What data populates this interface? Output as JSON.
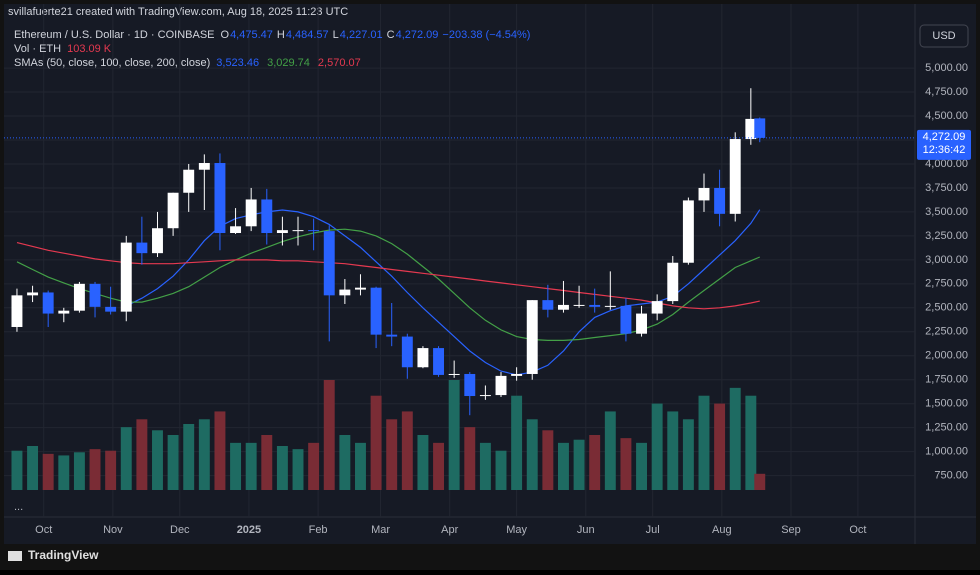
{
  "header": {
    "caption": "svillafuerte21 created with TradingView.com, Aug 18, 2025 11:23 UTC",
    "currency_button": "USD",
    "more": "...",
    "brand": "TradingView"
  },
  "chart_data": {
    "type": "candlestick",
    "legend": {
      "symbol": "Ethereum / U.S. Dollar · 1D · COINBASE",
      "open_key": "O",
      "open": "4,475.47",
      "high_key": "H",
      "high": "4,484.57",
      "low_key": "L",
      "low": "4,227.01",
      "close_key": "C",
      "close": "4,272.09",
      "change": "−203.38 (−4.54%)",
      "volume_title": "Vol · ETH",
      "volume": "103.09 K",
      "sma_title": "SMAs (50, close, 100, close, 200, close)"
    },
    "x": [
      -12,
      -5,
      2,
      9,
      16,
      23,
      30,
      37,
      44,
      51,
      58,
      65,
      72,
      79,
      86,
      93,
      100,
      107,
      114,
      121,
      128,
      135,
      142,
      149,
      156,
      163,
      170,
      177,
      184,
      191,
      198,
      205,
      212,
      219,
      226,
      233,
      240,
      247,
      254,
      261,
      268,
      275,
      282,
      289,
      296,
      303,
      310,
      317,
      321
    ],
    "open": [
      2300,
      2630,
      2660,
      2440,
      2470,
      2750,
      2510,
      2460,
      3180,
      3070,
      3330,
      3700,
      3940,
      4010,
      3280,
      3350,
      3630,
      3280,
      3310,
      3310,
      3300,
      2630,
      2690,
      2710,
      2220,
      2200,
      1880,
      2080,
      1800,
      1810,
      1580,
      1590,
      1790,
      1810,
      2580,
      2480,
      2530,
      2530,
      2510,
      2520,
      2230,
      2440,
      2570,
      2970,
      3620,
      3750,
      3480,
      4260,
      4475.47
    ],
    "high": [
      2700,
      2730,
      2680,
      2500,
      2770,
      2770,
      2720,
      3250,
      3450,
      3500,
      3700,
      4000,
      4100,
      4110,
      3540,
      3750,
      3740,
      3450,
      3450,
      3430,
      3360,
      2800,
      2850,
      2720,
      2550,
      2230,
      2100,
      2100,
      1950,
      1830,
      1690,
      1830,
      1880,
      2580,
      2740,
      2780,
      2730,
      2700,
      2880,
      2600,
      2520,
      2640,
      3040,
      3650,
      3900,
      3940,
      4330,
      4790,
      4484.57
    ],
    "low": [
      2250,
      2560,
      2300,
      2350,
      2450,
      2400,
      2430,
      2360,
      2950,
      3030,
      3250,
      3500,
      3520,
      3100,
      3270,
      3300,
      3160,
      3150,
      3150,
      3100,
      2150,
      2540,
      2630,
      2080,
      2100,
      1760,
      1870,
      1780,
      1770,
      1380,
      1540,
      1570,
      1740,
      1750,
      2400,
      2450,
      2500,
      2450,
      2480,
      2150,
      2200,
      2370,
      2540,
      2950,
      3500,
      3350,
      3400,
      4200,
      4227.01
    ],
    "close": [
      2630,
      2660,
      2440,
      2470,
      2750,
      2510,
      2460,
      3180,
      3070,
      3330,
      3700,
      3940,
      4010,
      3280,
      3350,
      3630,
      3280,
      3310,
      3310,
      3300,
      2630,
      2690,
      2710,
      2220,
      2200,
      1880,
      2080,
      1800,
      1810,
      1580,
      1590,
      1790,
      1810,
      2580,
      2480,
      2530,
      2530,
      2510,
      2520,
      2230,
      2440,
      2570,
      2970,
      3620,
      3750,
      3480,
      4260,
      4470,
      4272.09
    ],
    "volume": [
      250,
      280,
      230,
      220,
      240,
      260,
      250,
      400,
      450,
      380,
      350,
      420,
      450,
      500,
      300,
      300,
      350,
      280,
      260,
      300,
      700,
      350,
      300,
      600,
      450,
      500,
      350,
      300,
      700,
      400,
      300,
      250,
      600,
      450,
      380,
      300,
      320,
      350,
      500,
      330,
      300,
      550,
      500,
      450,
      600,
      550,
      650,
      600,
      103.09
    ],
    "up_color": "#ffffff",
    "down_color": "#2962ff",
    "volume_up_color": "#1e6b62",
    "volume_down_color": "#7a2c35",
    "series": [
      {
        "name": "SMA 50",
        "color": "#2962ff",
        "last_label": "3,523.46",
        "values": [
          null,
          null,
          null,
          null,
          null,
          null,
          null,
          2520,
          2600,
          2700,
          2830,
          3000,
          3200,
          3350,
          3430,
          3470,
          3500,
          3520,
          3500,
          3450,
          3370,
          3250,
          3130,
          2980,
          2830,
          2660,
          2500,
          2350,
          2200,
          2050,
          1930,
          1840,
          1800,
          1830,
          1900,
          2050,
          2250,
          2400,
          2470,
          2520,
          2540,
          2560,
          2620,
          2750,
          2900,
          3050,
          3200,
          3380,
          3523.46
        ]
      },
      {
        "name": "SMA 100",
        "color": "#43a047",
        "last_label": "3,029.74",
        "values": [
          2980,
          2900,
          2820,
          2760,
          2700,
          2650,
          2600,
          2560,
          2560,
          2600,
          2650,
          2720,
          2820,
          2920,
          3000,
          3070,
          3130,
          3190,
          3240,
          3280,
          3310,
          3320,
          3300,
          3250,
          3170,
          3060,
          2930,
          2800,
          2650,
          2500,
          2370,
          2270,
          2200,
          2170,
          2160,
          2160,
          2170,
          2190,
          2210,
          2230,
          2270,
          2330,
          2430,
          2560,
          2680,
          2800,
          2920,
          2990,
          3029.74
        ]
      },
      {
        "name": "SMA 200",
        "color": "#e53950",
        "last_label": "2,570.07",
        "values": [
          3180,
          3140,
          3100,
          3070,
          3040,
          3010,
          2990,
          2970,
          2960,
          2960,
          2960,
          2970,
          2980,
          2990,
          3000,
          3000,
          3000,
          2990,
          2990,
          2980,
          2970,
          2960,
          2940,
          2920,
          2900,
          2880,
          2860,
          2840,
          2820,
          2800,
          2780,
          2760,
          2740,
          2720,
          2700,
          2680,
          2660,
          2640,
          2620,
          2600,
          2580,
          2550,
          2520,
          2500,
          2490,
          2500,
          2520,
          2550,
          2570.07
        ]
      }
    ],
    "last_price": {
      "value": 4272.09,
      "label": "4,272.09",
      "countdown": "12:36:42",
      "color": "#2962ff"
    },
    "xlim": [
      -19.6,
      388.8
    ],
    "xticks": [
      {
        "value": 0,
        "label": "Oct"
      },
      {
        "value": 31,
        "label": "Nov"
      },
      {
        "value": 61,
        "label": "Dec"
      },
      {
        "value": 92,
        "label": "2025"
      },
      {
        "value": 123,
        "label": "Feb"
      },
      {
        "value": 151,
        "label": "Mar"
      },
      {
        "value": 182,
        "label": "Apr"
      },
      {
        "value": 212,
        "label": "May"
      },
      {
        "value": 243,
        "label": "Jun"
      },
      {
        "value": 273,
        "label": "Jul"
      },
      {
        "value": 304,
        "label": "Aug"
      },
      {
        "value": 335,
        "label": "Sep"
      },
      {
        "value": 365,
        "label": "Oct"
      }
    ],
    "ylim": [
      600,
      5710
    ],
    "yticks": [
      {
        "value": 750,
        "label": "750.00"
      },
      {
        "value": 1000,
        "label": "1,000.00"
      },
      {
        "value": 1250,
        "label": "1,250.00"
      },
      {
        "value": 1500,
        "label": "1,500.00"
      },
      {
        "value": 1750,
        "label": "1,750.00"
      },
      {
        "value": 2000,
        "label": "2,000.00"
      },
      {
        "value": 2250,
        "label": "2,250.00"
      },
      {
        "value": 2500,
        "label": "2,500.00"
      },
      {
        "value": 2750,
        "label": "2,750.00"
      },
      {
        "value": 3000,
        "label": "3,000.00"
      },
      {
        "value": 3250,
        "label": "3,250.00"
      },
      {
        "value": 3500,
        "label": "3,500.00"
      },
      {
        "value": 3750,
        "label": "3,750.00"
      },
      {
        "value": 4000,
        "label": "4,000.00"
      },
      {
        "value": 4250,
        "label": "4,250.00"
      },
      {
        "value": 4500,
        "label": "4,500.00"
      },
      {
        "value": 4750,
        "label": "4,750.00"
      },
      {
        "value": 5000,
        "label": "5,000.00"
      }
    ],
    "grid": true
  }
}
